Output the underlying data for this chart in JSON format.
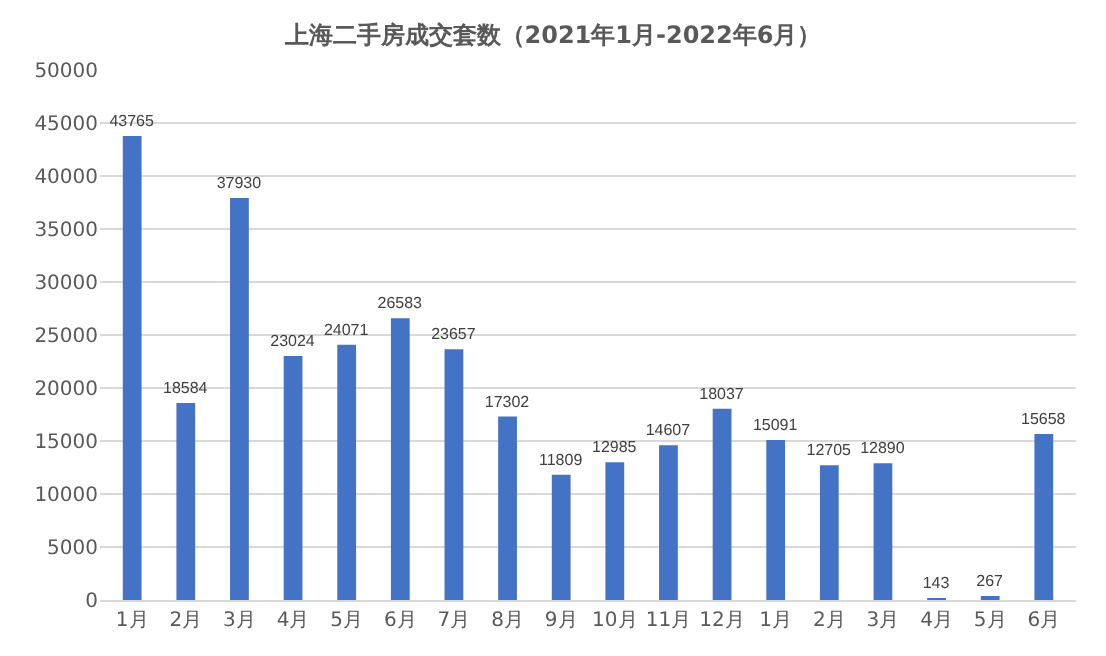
{
  "chart_data": {
    "type": "bar",
    "title": "上海二手房成交套数（2021年1月-2022年6月）",
    "categories": [
      "1月",
      "2月",
      "3月",
      "4月",
      "5月",
      "6月",
      "7月",
      "8月",
      "9月",
      "10月",
      "11月",
      "12月",
      "1月",
      "2月",
      "3月",
      "4月",
      "5月",
      "6月"
    ],
    "values": [
      43765,
      18584,
      37930,
      23024,
      24071,
      26583,
      23657,
      17302,
      11809,
      12985,
      14607,
      18037,
      15091,
      12705,
      12890,
      143,
      267,
      15658
    ],
    "color": "#4472c4",
    "ylim": [
      0,
      50000
    ],
    "yticks": [
      0,
      5000,
      10000,
      15000,
      20000,
      25000,
      30000,
      35000,
      40000,
      45000,
      50000
    ],
    "grid": "y",
    "data_labels": true
  }
}
